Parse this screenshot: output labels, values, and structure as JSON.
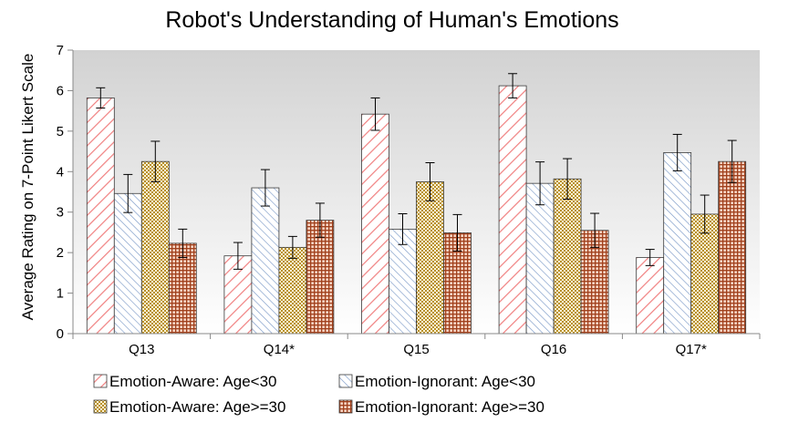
{
  "chart_data": {
    "type": "bar",
    "title": "Robot's Understanding of Human's Emotions",
    "xlabel": "",
    "ylabel": "Average Rating on 7-Point Likert Scale",
    "ylim": [
      0,
      7
    ],
    "yticks": [
      "0",
      "1",
      "2",
      "3",
      "4",
      "5",
      "6",
      "7"
    ],
    "categories": [
      "Q13",
      "Q14*",
      "Q15",
      "Q16",
      "Q17*"
    ],
    "grid": false,
    "plot_background": "gradient light-gray",
    "legend_position": "bottom",
    "error_bars": true,
    "series": [
      {
        "name": "Emotion-Aware: Age<30",
        "pattern": "diagonal-right",
        "color": "#f08080",
        "values": [
          5.82,
          1.92,
          5.42,
          6.12,
          1.88
        ],
        "errors": [
          0.25,
          0.33,
          0.4,
          0.3,
          0.2
        ]
      },
      {
        "name": "Emotion-Ignorant: Age<30",
        "pattern": "diagonal-left",
        "color": "#7c9ac8",
        "values": [
          3.46,
          3.6,
          2.58,
          3.71,
          4.47
        ],
        "errors": [
          0.47,
          0.45,
          0.38,
          0.53,
          0.45
        ]
      },
      {
        "name": "Emotion-Aware: Age>=30",
        "pattern": "checker",
        "color": "#b8902a",
        "values": [
          4.25,
          2.13,
          3.75,
          3.82,
          2.95
        ],
        "errors": [
          0.5,
          0.27,
          0.47,
          0.5,
          0.47
        ]
      },
      {
        "name": "Emotion-Ignorant: Age>=30",
        "pattern": "grid",
        "color": "#a0401c",
        "values": [
          2.23,
          2.8,
          2.49,
          2.55,
          4.25
        ],
        "errors": [
          0.35,
          0.42,
          0.45,
          0.42,
          0.52
        ]
      }
    ]
  }
}
